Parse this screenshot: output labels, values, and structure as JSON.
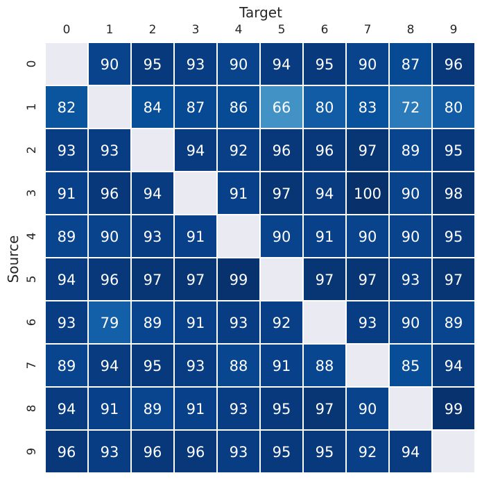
{
  "chart_data": {
    "type": "heatmap",
    "xlabel": "Target",
    "ylabel": "Source",
    "x_categories": [
      "0",
      "1",
      "2",
      "3",
      "4",
      "5",
      "6",
      "7",
      "8",
      "9"
    ],
    "y_categories": [
      "0",
      "1",
      "2",
      "3",
      "4",
      "5",
      "6",
      "7",
      "8",
      "9"
    ],
    "values": [
      [
        null,
        90,
        95,
        93,
        90,
        94,
        95,
        90,
        87,
        96
      ],
      [
        82,
        null,
        84,
        87,
        86,
        66,
        80,
        83,
        72,
        80
      ],
      [
        93,
        93,
        null,
        94,
        92,
        96,
        96,
        97,
        89,
        95
      ],
      [
        91,
        96,
        94,
        null,
        91,
        97,
        94,
        100,
        90,
        98
      ],
      [
        89,
        90,
        93,
        91,
        null,
        90,
        91,
        90,
        90,
        95
      ],
      [
        94,
        96,
        97,
        97,
        99,
        null,
        97,
        97,
        93,
        97
      ],
      [
        93,
        79,
        89,
        91,
        93,
        92,
        null,
        93,
        90,
        89
      ],
      [
        89,
        94,
        95,
        93,
        88,
        91,
        88,
        null,
        85,
        94
      ],
      [
        94,
        91,
        89,
        91,
        93,
        95,
        97,
        90,
        null,
        99
      ],
      [
        96,
        93,
        96,
        96,
        93,
        95,
        95,
        92,
        94,
        null
      ]
    ],
    "colormap": "Blues",
    "value_range": [
      66,
      100
    ],
    "missing_color": "#eaeaf2",
    "grid_line_color": "#ffffff",
    "x_axis_position": "top",
    "colorbar": false
  }
}
